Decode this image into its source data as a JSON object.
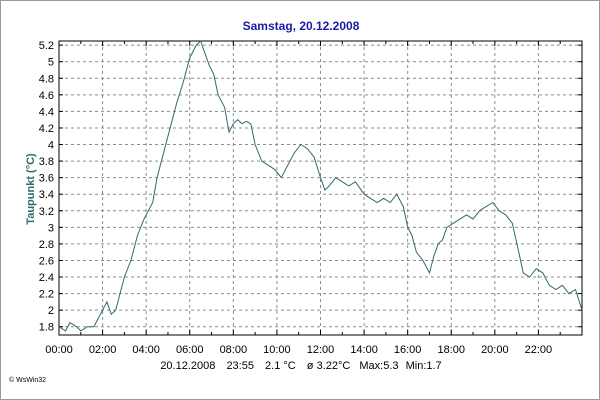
{
  "chart_data": {
    "type": "line",
    "title": "Samstag, 20.12.2008",
    "xlabel": "",
    "ylabel": "Taupunkt (°C)",
    "xlim": [
      0,
      24
    ],
    "ylim": [
      1.7,
      5.25
    ],
    "x_tick_labels": [
      "00:00",
      "02:00",
      "04:00",
      "06:00",
      "08:00",
      "10:00",
      "12:00",
      "14:00",
      "16:00",
      "18:00",
      "20:00",
      "22:00"
    ],
    "y_tick_labels": [
      "1.8",
      "2",
      "2.2",
      "2.4",
      "2.6",
      "2.8",
      "3",
      "3.2",
      "3.4",
      "3.6",
      "3.8",
      "4",
      "4.2",
      "4.4",
      "4.6",
      "4.8",
      "5",
      "5.2"
    ],
    "grid": true,
    "line_color": "#2e6b6b",
    "x": [
      0.0,
      0.3,
      0.5,
      0.8,
      1.0,
      1.3,
      1.6,
      1.8,
      2.0,
      2.2,
      2.4,
      2.6,
      2.8,
      3.0,
      3.3,
      3.6,
      3.9,
      4.1,
      4.3,
      4.5,
      4.8,
      5.1,
      5.4,
      5.7,
      6.0,
      6.3,
      6.5,
      6.7,
      6.9,
      7.1,
      7.3,
      7.6,
      7.8,
      8.0,
      8.2,
      8.4,
      8.6,
      8.8,
      9.0,
      9.3,
      9.6,
      9.9,
      10.2,
      10.5,
      10.8,
      11.1,
      11.4,
      11.7,
      12.0,
      12.2,
      12.4,
      12.7,
      13.0,
      13.3,
      13.6,
      14.0,
      14.3,
      14.6,
      14.9,
      15.2,
      15.5,
      15.8,
      16.0,
      16.2,
      16.4,
      16.7,
      17.0,
      17.2,
      17.4,
      17.6,
      17.8,
      18.1,
      18.4,
      18.7,
      19.0,
      19.3,
      19.6,
      19.9,
      20.2,
      20.5,
      20.8,
      21.1,
      21.3,
      21.6,
      21.9,
      22.2,
      22.5,
      22.8,
      23.1,
      23.4,
      23.7,
      24.0
    ],
    "y": [
      1.8,
      1.75,
      1.85,
      1.8,
      1.75,
      1.8,
      1.8,
      1.9,
      2.0,
      2.1,
      1.95,
      2.0,
      2.2,
      2.4,
      2.6,
      2.9,
      3.1,
      3.2,
      3.3,
      3.6,
      3.9,
      4.2,
      4.5,
      4.75,
      5.05,
      5.2,
      5.25,
      5.1,
      4.95,
      4.85,
      4.6,
      4.45,
      4.15,
      4.25,
      4.3,
      4.25,
      4.28,
      4.25,
      4.0,
      3.8,
      3.75,
      3.7,
      3.6,
      3.75,
      3.9,
      4.0,
      3.95,
      3.85,
      3.6,
      3.45,
      3.5,
      3.6,
      3.55,
      3.5,
      3.55,
      3.4,
      3.35,
      3.3,
      3.35,
      3.3,
      3.4,
      3.25,
      3.0,
      2.9,
      2.7,
      2.6,
      2.45,
      2.65,
      2.8,
      2.85,
      3.0,
      3.05,
      3.1,
      3.15,
      3.1,
      3.2,
      3.25,
      3.3,
      3.2,
      3.15,
      3.05,
      2.7,
      2.45,
      2.4,
      2.5,
      2.45,
      2.3,
      2.25,
      2.3,
      2.2,
      2.25,
      2.0
    ]
  },
  "status_line": {
    "date": "20.12.2008",
    "time": "23:55",
    "current": "2.1 °C",
    "avg": "ø 3.22°C",
    "max": "Max:5.3",
    "min": "Min:1.7"
  },
  "credit": "© WsWin32"
}
